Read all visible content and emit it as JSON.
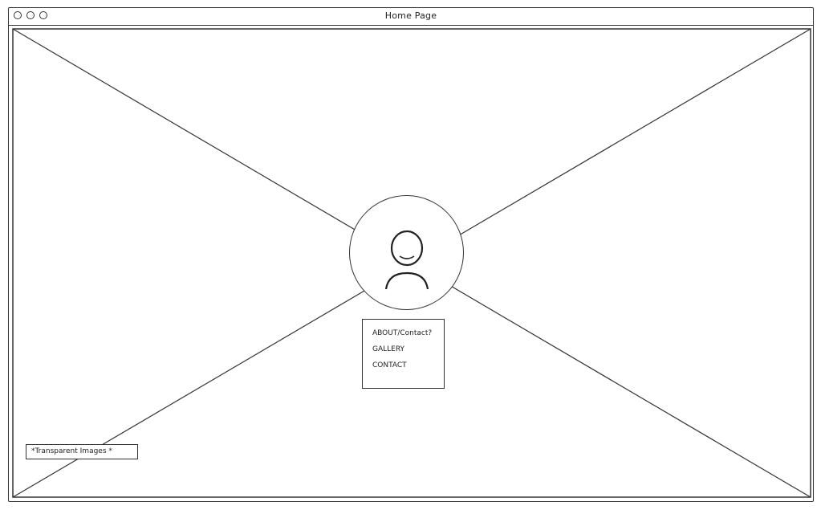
{
  "window": {
    "title": "Home Page"
  },
  "hero": {
    "image_icon": "image-placeholder-icon",
    "avatar_icon": "user-icon"
  },
  "nav": {
    "items": [
      {
        "label": "ABOUT/Contact?"
      },
      {
        "label": "GALLERY"
      },
      {
        "label": "CONTACT"
      }
    ]
  },
  "note": {
    "text": "*Transparent Images *"
  },
  "colors": {
    "stroke": "#333333",
    "background": "#ffffff"
  }
}
